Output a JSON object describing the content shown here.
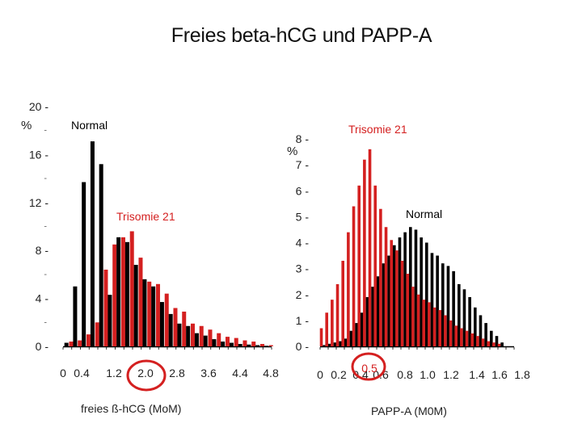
{
  "title": "Freies beta-hCG und PAPP-A",
  "colors": {
    "normal": "#000000",
    "trisomy": "#d42020",
    "highlight": "#d42020"
  },
  "chart_data": [
    {
      "type": "bar",
      "title": "",
      "xlabel": "freies ß-hCG (MoM)",
      "ylabel": "%",
      "ylim": [
        0,
        20
      ],
      "yticks": [
        0,
        4,
        8,
        12,
        16,
        20
      ],
      "yticklabels": [
        "0",
        "4",
        "8",
        "12",
        "16",
        "20"
      ],
      "xlim": [
        0,
        4.8
      ],
      "xticklabels": [
        "0",
        "0.4",
        "1.2",
        "2.0",
        "2.8",
        "3.6",
        "4.4",
        "4.8"
      ],
      "highlight": {
        "label": "2.0",
        "x": 2.0
      },
      "x": [
        0.1,
        0.3,
        0.5,
        0.7,
        0.9,
        1.1,
        1.3,
        1.5,
        1.7,
        1.9,
        2.1,
        2.3,
        2.5,
        2.7,
        2.9,
        3.1,
        3.3,
        3.5,
        3.7,
        3.9,
        4.1,
        4.3,
        4.5,
        4.7
      ],
      "series": [
        {
          "name": "Normal",
          "color": "#000000",
          "values": [
            0.3,
            5.0,
            13.7,
            17.1,
            15.2,
            4.3,
            9.1,
            8.7,
            6.8,
            5.6,
            5.0,
            3.7,
            2.7,
            1.9,
            1.7,
            1.1,
            0.9,
            0.6,
            0.4,
            0.3,
            0.2,
            0.15,
            0.1,
            0.05
          ]
        },
        {
          "name": "Trisomie 21",
          "color": "#d42020",
          "values": [
            0.4,
            0.5,
            1.0,
            2.0,
            6.4,
            8.5,
            9.1,
            9.6,
            7.4,
            5.4,
            5.2,
            4.4,
            3.2,
            2.9,
            1.9,
            1.7,
            1.4,
            1.1,
            0.8,
            0.7,
            0.5,
            0.4,
            0.2,
            0.1
          ]
        }
      ],
      "labels": [
        {
          "text": "Normal",
          "color": "#000000"
        },
        {
          "text": "Trisomie 21",
          "color": "#d42020"
        }
      ]
    },
    {
      "type": "bar",
      "title": "",
      "xlabel": "PAPP-A (M0M)",
      "ylabel": "%",
      "ylim": [
        0,
        8
      ],
      "yticks": [
        0,
        1,
        2,
        3,
        4,
        5,
        6,
        7,
        8
      ],
      "yticklabels": [
        "0",
        "1",
        "2",
        "3",
        "4",
        "5",
        "6",
        "7",
        "8"
      ],
      "xlim": [
        0,
        1.8
      ],
      "xticklabels": [
        "0",
        "0.2",
        "0.4",
        "0.6",
        "0.8",
        "1.0",
        "1.2",
        "1.4",
        "1.6",
        "1.8"
      ],
      "highlight": {
        "label": "0.5",
        "x": 0.5
      },
      "x": [
        0.025,
        0.075,
        0.125,
        0.175,
        0.225,
        0.275,
        0.325,
        0.375,
        0.425,
        0.475,
        0.525,
        0.575,
        0.625,
        0.675,
        0.725,
        0.775,
        0.825,
        0.875,
        0.925,
        0.975,
        1.025,
        1.075,
        1.125,
        1.175,
        1.225,
        1.275,
        1.325,
        1.375,
        1.425,
        1.475,
        1.525,
        1.575,
        1.625,
        1.675
      ],
      "series": [
        {
          "name": "Normal",
          "color": "#000000",
          "values": [
            0.05,
            0.1,
            0.15,
            0.2,
            0.3,
            0.6,
            0.9,
            1.3,
            1.9,
            2.3,
            2.7,
            3.2,
            3.5,
            3.9,
            4.2,
            4.4,
            4.6,
            4.5,
            4.2,
            4.0,
            3.6,
            3.5,
            3.2,
            3.1,
            2.9,
            2.4,
            2.2,
            1.9,
            1.5,
            1.2,
            0.9,
            0.6,
            0.4,
            0.15
          ]
        },
        {
          "name": "Trisomie 21",
          "color": "#d42020",
          "values": [
            0.7,
            1.3,
            1.8,
            2.4,
            3.3,
            4.4,
            5.4,
            6.2,
            7.2,
            7.6,
            6.2,
            5.3,
            4.6,
            4.1,
            3.7,
            3.3,
            2.8,
            2.3,
            2.0,
            1.8,
            1.7,
            1.5,
            1.4,
            1.2,
            1.0,
            0.8,
            0.7,
            0.6,
            0.5,
            0.4,
            0.3,
            0.2,
            0.15,
            0.1
          ]
        }
      ],
      "labels": [
        {
          "text": "Trisomie 21",
          "color": "#d42020"
        },
        {
          "text": "Normal",
          "color": "#000000"
        }
      ]
    }
  ]
}
